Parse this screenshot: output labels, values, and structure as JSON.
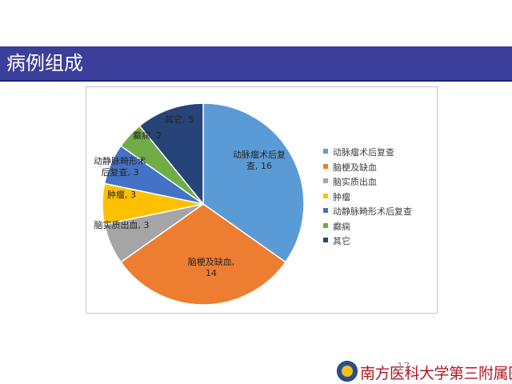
{
  "slide": {
    "title": "病例组成",
    "page_number": "17",
    "logo_text": "南方医科大学第三附属医院",
    "colors": {
      "title_bar": "#3b3e9a",
      "title_text": "#ffffff"
    }
  },
  "chart_data": {
    "type": "pie",
    "title": "",
    "categories": [
      "动脉瘤术后复查",
      "脑梗及缺血",
      "脑实质出血",
      "肿瘤",
      "动静脉畸形术后复查",
      "癫痫",
      "其它"
    ],
    "values": [
      16,
      14,
      3,
      3,
      3,
      2,
      5
    ],
    "colors": [
      "#5b9bd5",
      "#ed7d31",
      "#a5a5a5",
      "#ffc000",
      "#4472c4",
      "#70ad47",
      "#264478"
    ],
    "data_labels": [
      [
        "动脉瘤术后复",
        "查, 16"
      ],
      [
        "脑梗及缺血,",
        "14"
      ],
      [
        "脑实质出血, 3"
      ],
      [
        "肿瘤, 3"
      ],
      [
        "动静脉畸形术",
        "后复查, 3"
      ],
      [
        "癫痫, 2"
      ],
      [
        "其它, 5"
      ]
    ],
    "legend_position": "right",
    "start_angle_deg": 0,
    "direction": "clockwise"
  }
}
